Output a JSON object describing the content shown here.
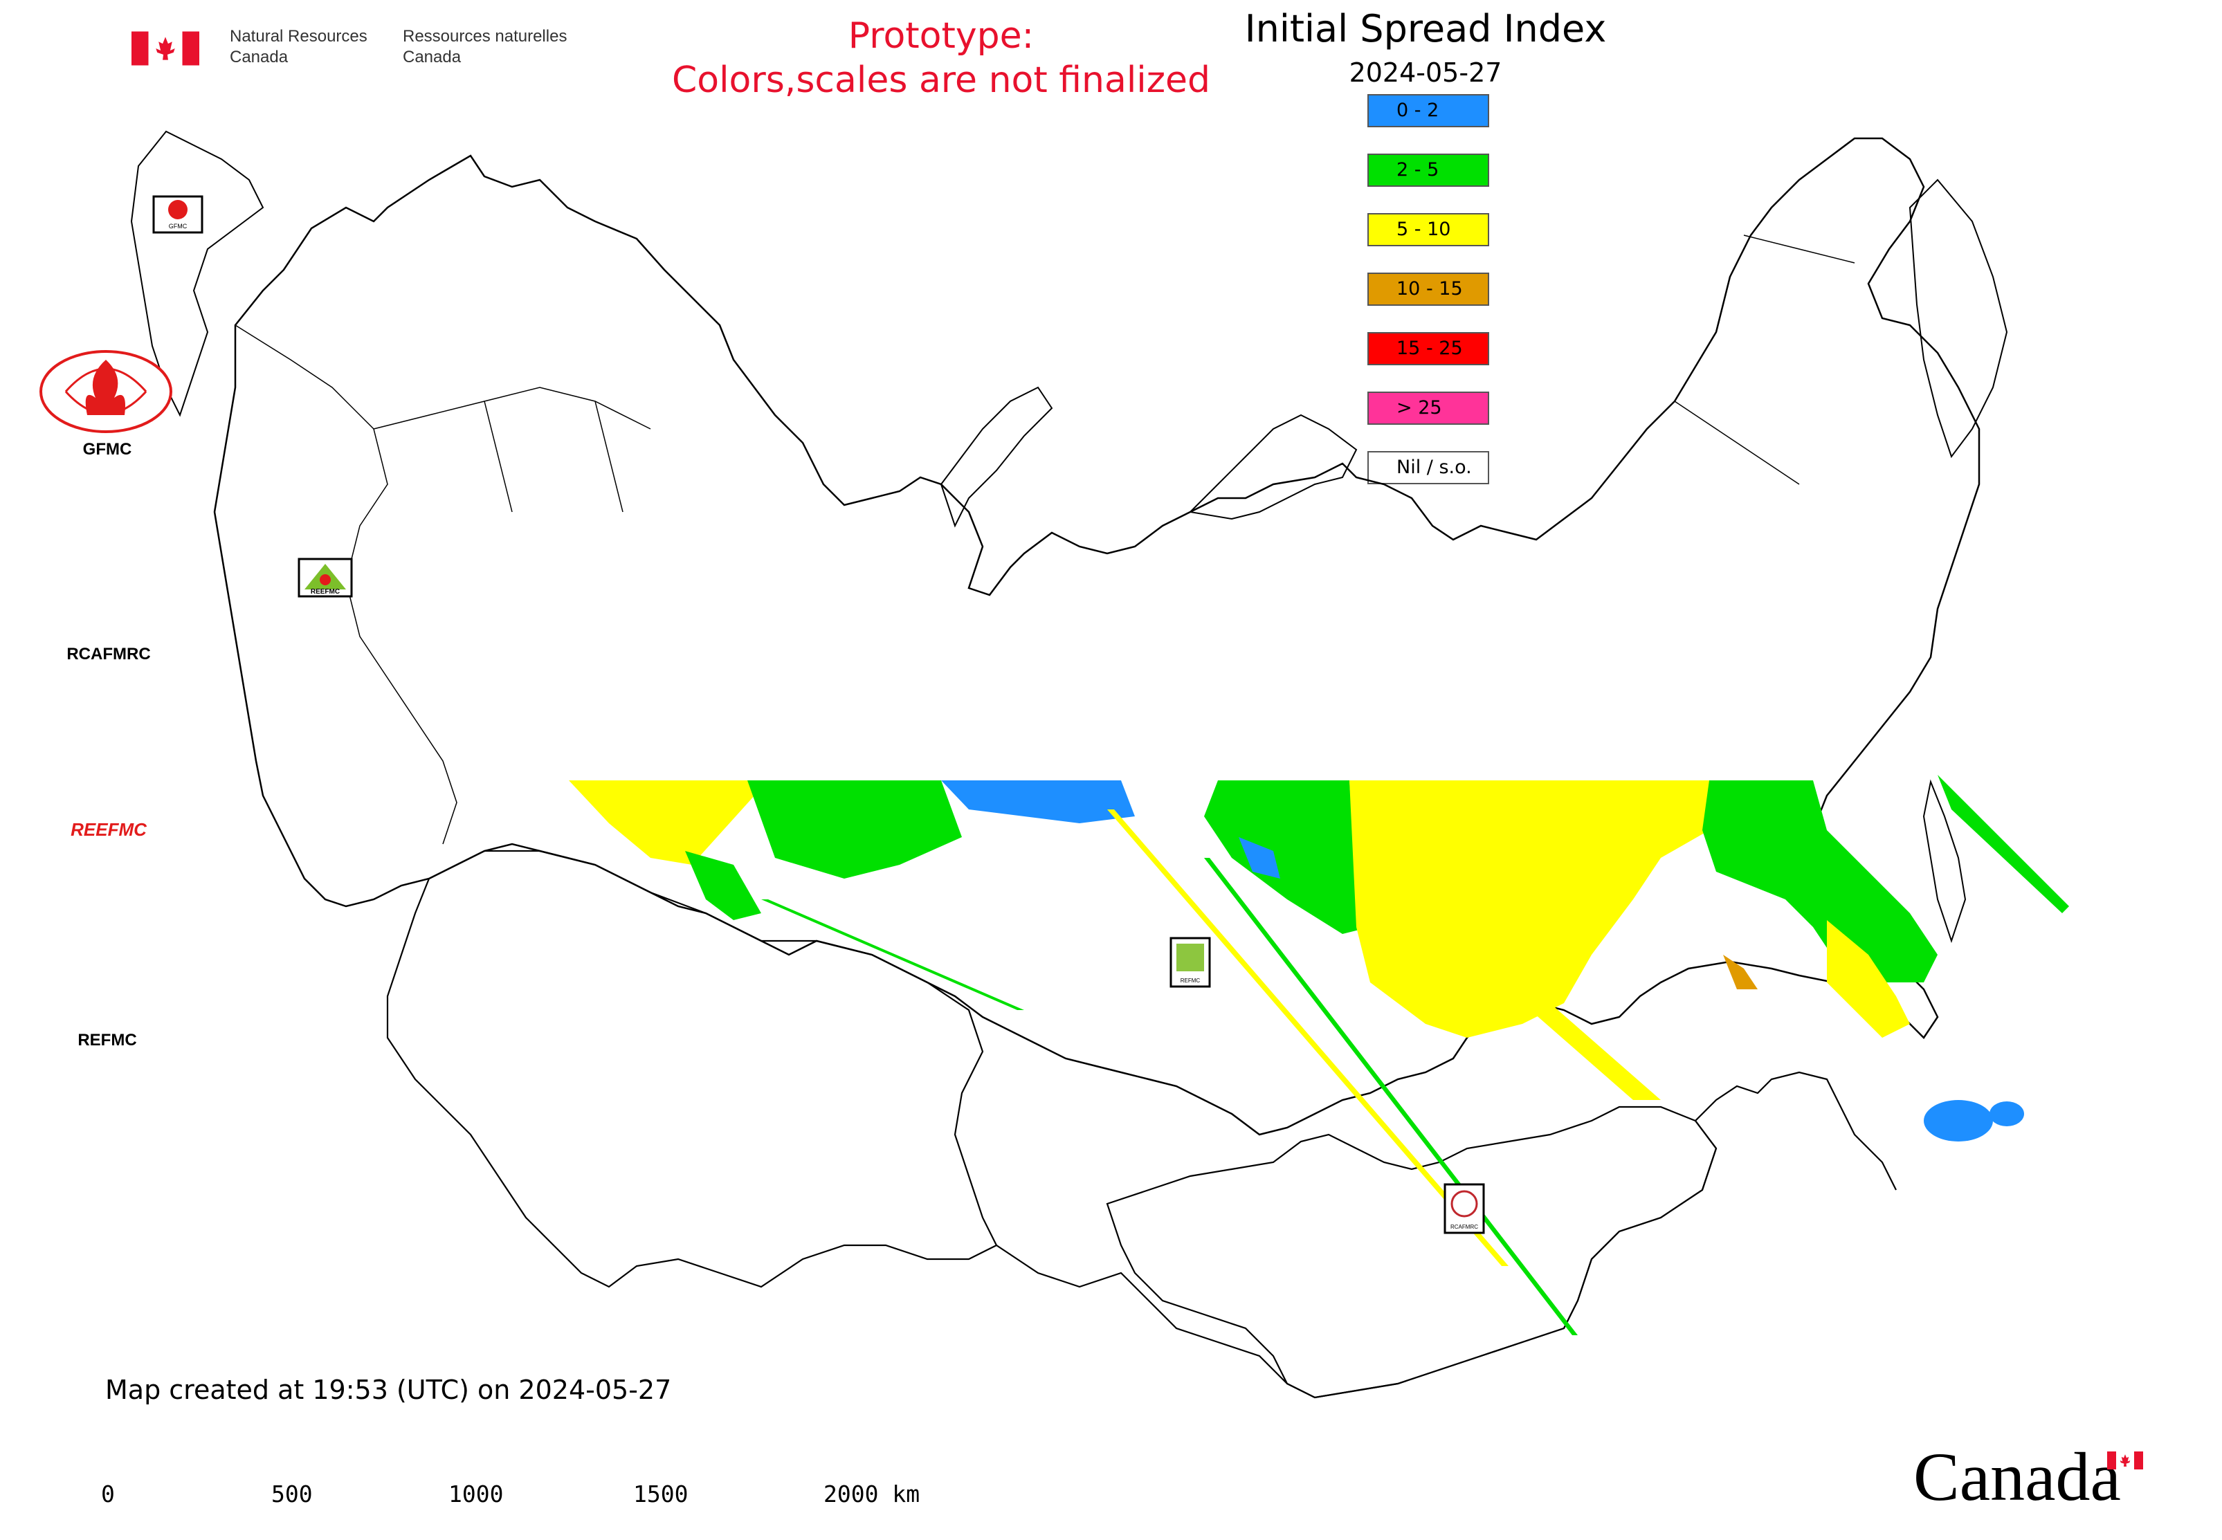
{
  "header": {
    "agency_en": [
      "Natural Resources",
      "Canada"
    ],
    "agency_fr": [
      "Ressources naturelles",
      "Canada"
    ]
  },
  "prototype_notice": [
    "Prototype:",
    "Colors,scales are not finalized"
  ],
  "title": "Initial Spread Index",
  "date": "2024-05-27",
  "legend": {
    "items": [
      {
        "label": "0 - 2",
        "color": "#1e8fff"
      },
      {
        "label": "2 - 5",
        "color": "#00e000"
      },
      {
        "label": "5 - 10",
        "color": "#ffff00"
      },
      {
        "label": "10 - 15",
        "color": "#e09a00"
      },
      {
        "label": "15 - 25",
        "color": "#ff0000"
      },
      {
        "label": "> 25",
        "color": "#ff3399"
      },
      {
        "label": "Nil / s.o.",
        "color": "#ffffff"
      }
    ]
  },
  "logos": {
    "gfmc": "GFMC",
    "rcafmrc": "RCAFMRC",
    "reefmc": "REEFMC",
    "refmc": "REFMC",
    "small_gfmc": "GFMC",
    "small_reefmc": "REEFMC",
    "small_refmc": "REFMC",
    "small_rcafmrc": "RCAFMRC"
  },
  "footer": {
    "created": "Map created at 19:53 (UTC) on 2024-05-27",
    "scale_ticks": [
      "0",
      "500",
      "1000",
      "1500",
      "2000 km"
    ],
    "wordmark": "Canada"
  },
  "icons": {
    "header_flag": "canada-flag-icon",
    "wordmark_flag": "canada-flag-icon"
  }
}
